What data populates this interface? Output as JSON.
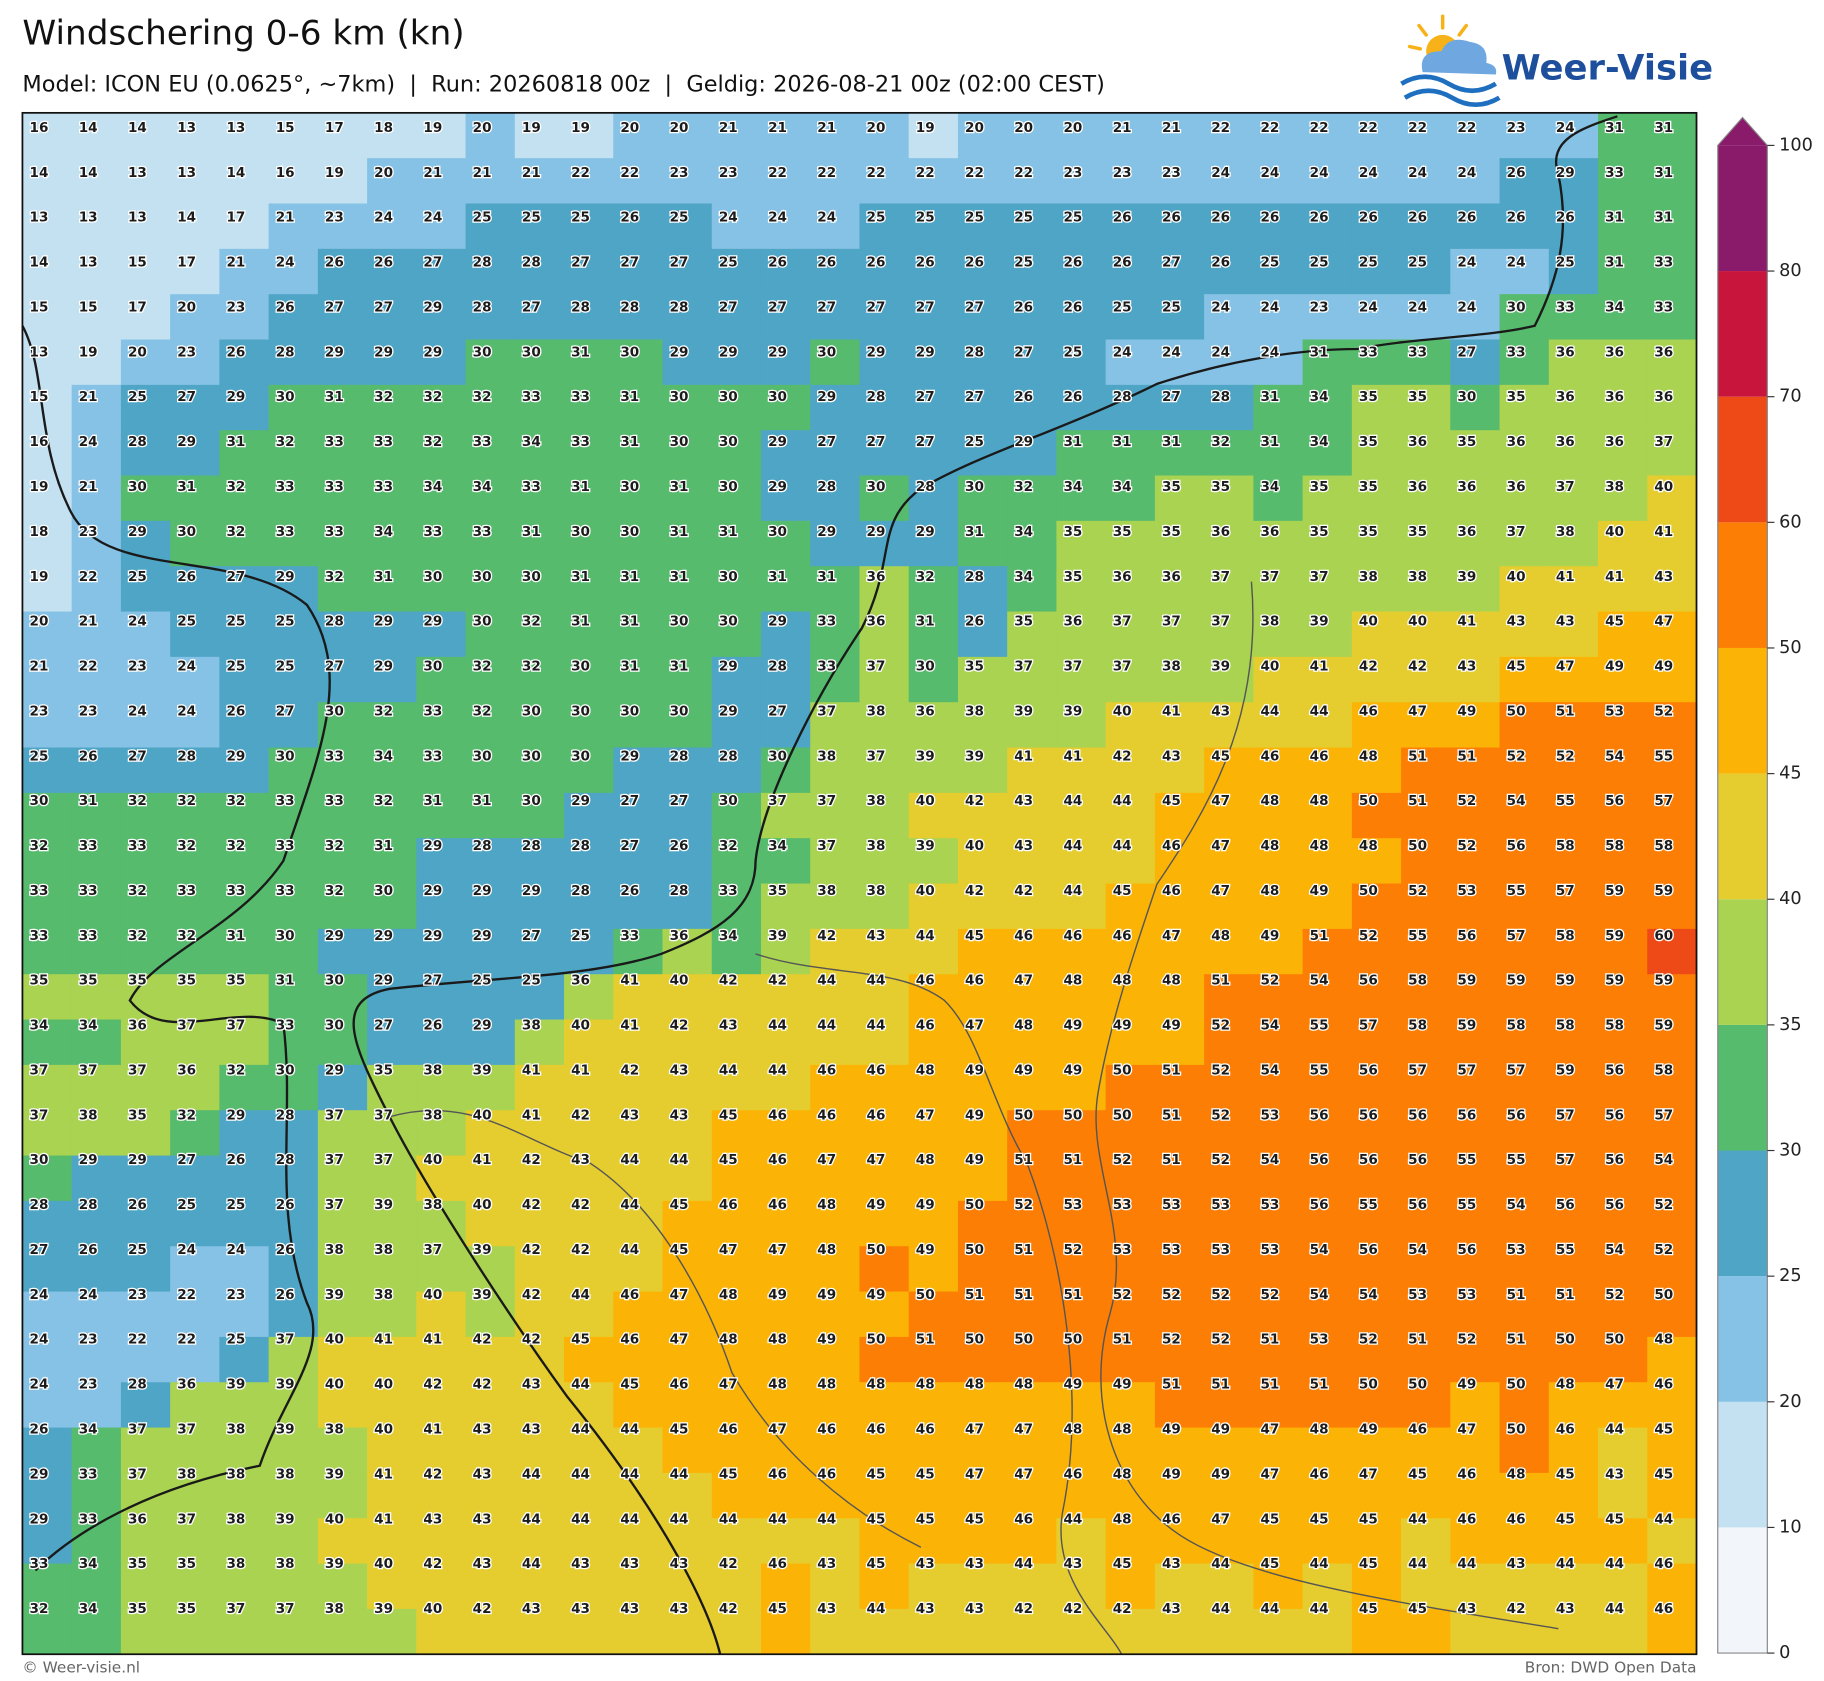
{
  "header": {
    "title": "Windschering 0-6 km (kn)",
    "subtitle": "Model: ICON EU (0.0625°, ~7km)  |  Run: 20260818 00z  |  Geldig: 2026-08-21 00z (02:00 CEST)",
    "logo": "Weer-Visie"
  },
  "map": {
    "rows": [
      [
        16,
        14,
        14,
        13,
        13,
        15,
        17,
        18,
        19,
        20,
        19,
        19,
        20,
        20,
        21,
        21,
        21,
        20,
        19,
        20,
        20,
        20,
        21,
        21,
        22,
        22,
        22,
        22,
        22,
        22,
        23,
        24,
        31,
        31
      ],
      [
        14,
        14,
        13,
        13,
        14,
        16,
        19,
        20,
        21,
        21,
        21,
        22,
        22,
        23,
        23,
        22,
        22,
        22,
        22,
        22,
        22,
        23,
        23,
        23,
        24,
        24,
        24,
        24,
        24,
        24,
        26,
        29,
        33,
        31
      ],
      [
        13,
        13,
        13,
        14,
        17,
        21,
        23,
        24,
        24,
        25,
        25,
        25,
        26,
        25,
        24,
        24,
        24,
        25,
        25,
        25,
        25,
        25,
        26,
        26,
        26,
        26,
        26,
        26,
        26,
        26,
        26,
        26,
        31,
        31
      ],
      [
        14,
        13,
        15,
        17,
        21,
        24,
        26,
        26,
        27,
        28,
        28,
        27,
        27,
        27,
        25,
        26,
        26,
        26,
        26,
        26,
        25,
        26,
        26,
        27,
        26,
        25,
        25,
        25,
        25,
        24,
        24,
        25,
        31,
        33
      ],
      [
        15,
        15,
        17,
        20,
        23,
        26,
        27,
        27,
        29,
        28,
        27,
        28,
        28,
        28,
        27,
        27,
        27,
        27,
        27,
        27,
        26,
        26,
        25,
        25,
        24,
        24,
        23,
        24,
        24,
        24,
        30,
        33,
        34,
        33
      ],
      [
        13,
        19,
        20,
        23,
        26,
        28,
        29,
        29,
        29,
        30,
        30,
        31,
        30,
        29,
        29,
        29,
        30,
        29,
        29,
        28,
        27,
        25,
        24,
        24,
        24,
        24,
        31,
        33,
        33,
        27,
        33,
        36,
        36,
        36
      ],
      [
        15,
        21,
        25,
        27,
        29,
        30,
        31,
        32,
        32,
        32,
        33,
        33,
        31,
        30,
        30,
        30,
        29,
        28,
        27,
        27,
        26,
        26,
        28,
        27,
        28,
        31,
        34,
        35,
        35,
        30,
        35,
        36,
        36,
        36
      ],
      [
        16,
        24,
        28,
        29,
        31,
        32,
        33,
        33,
        32,
        33,
        34,
        33,
        31,
        30,
        30,
        29,
        27,
        27,
        27,
        25,
        29,
        31,
        31,
        31,
        32,
        31,
        34,
        35,
        36,
        35,
        36,
        36,
        36,
        37
      ],
      [
        19,
        21,
        30,
        31,
        32,
        33,
        33,
        33,
        34,
        34,
        33,
        31,
        30,
        31,
        30,
        29,
        28,
        30,
        28,
        30,
        32,
        34,
        34,
        35,
        35,
        34,
        35,
        35,
        36,
        36,
        36,
        37,
        38,
        40
      ],
      [
        18,
        23,
        29,
        30,
        32,
        33,
        33,
        34,
        33,
        33,
        31,
        30,
        30,
        31,
        31,
        30,
        29,
        29,
        29,
        31,
        34,
        35,
        35,
        35,
        36,
        36,
        35,
        35,
        35,
        36,
        37,
        38,
        40,
        41
      ],
      [
        19,
        22,
        25,
        26,
        27,
        29,
        32,
        31,
        30,
        30,
        30,
        31,
        31,
        31,
        30,
        31,
        31,
        36,
        32,
        28,
        34,
        35,
        36,
        36,
        37,
        37,
        37,
        38,
        38,
        39,
        40,
        41,
        41,
        43
      ],
      [
        20,
        21,
        24,
        25,
        25,
        25,
        28,
        29,
        29,
        30,
        32,
        31,
        31,
        30,
        30,
        29,
        33,
        36,
        31,
        26,
        35,
        36,
        37,
        37,
        37,
        38,
        39,
        40,
        40,
        41,
        43,
        43,
        45,
        47
      ],
      [
        21,
        22,
        23,
        24,
        25,
        25,
        27,
        29,
        30,
        32,
        32,
        30,
        31,
        31,
        29,
        28,
        33,
        37,
        30,
        35,
        37,
        37,
        37,
        38,
        39,
        40,
        41,
        42,
        42,
        43,
        45,
        47,
        49,
        49
      ],
      [
        23,
        23,
        24,
        24,
        26,
        27,
        30,
        32,
        33,
        32,
        30,
        30,
        30,
        30,
        29,
        27,
        37,
        38,
        36,
        38,
        39,
        39,
        40,
        41,
        43,
        44,
        44,
        46,
        47,
        49,
        50,
        51,
        53,
        52
      ],
      [
        25,
        26,
        27,
        28,
        29,
        30,
        33,
        34,
        33,
        30,
        30,
        30,
        29,
        28,
        28,
        30,
        38,
        37,
        39,
        39,
        41,
        41,
        42,
        43,
        45,
        46,
        46,
        48,
        51,
        51,
        52,
        52,
        54,
        55
      ],
      [
        30,
        31,
        32,
        32,
        32,
        33,
        33,
        32,
        31,
        31,
        30,
        29,
        27,
        27,
        30,
        37,
        37,
        38,
        40,
        42,
        43,
        44,
        44,
        45,
        47,
        48,
        48,
        50,
        51,
        52,
        54,
        55,
        56,
        57
      ],
      [
        32,
        33,
        33,
        32,
        32,
        33,
        32,
        31,
        29,
        28,
        28,
        28,
        27,
        26,
        32,
        34,
        37,
        38,
        39,
        40,
        43,
        44,
        44,
        46,
        47,
        48,
        48,
        48,
        50,
        52,
        56,
        58,
        58,
        58
      ],
      [
        33,
        33,
        32,
        33,
        33,
        33,
        32,
        30,
        29,
        29,
        29,
        28,
        26,
        28,
        33,
        35,
        38,
        38,
        40,
        42,
        42,
        44,
        45,
        46,
        47,
        48,
        49,
        50,
        52,
        53,
        55,
        57,
        59,
        59
      ],
      [
        33,
        33,
        32,
        32,
        31,
        30,
        29,
        29,
        29,
        29,
        27,
        25,
        33,
        36,
        34,
        39,
        42,
        43,
        44,
        45,
        46,
        46,
        46,
        47,
        48,
        49,
        51,
        52,
        55,
        56,
        57,
        58,
        59,
        60
      ],
      [
        35,
        35,
        35,
        35,
        35,
        31,
        30,
        29,
        27,
        25,
        25,
        36,
        41,
        40,
        42,
        42,
        44,
        44,
        46,
        46,
        47,
        48,
        48,
        48,
        51,
        52,
        54,
        56,
        58,
        59,
        59,
        59,
        59,
        59
      ],
      [
        34,
        34,
        36,
        37,
        37,
        33,
        30,
        27,
        26,
        29,
        38,
        40,
        41,
        42,
        43,
        44,
        44,
        44,
        46,
        47,
        48,
        49,
        49,
        49,
        52,
        54,
        55,
        57,
        58,
        59,
        58,
        58,
        58,
        59
      ],
      [
        37,
        37,
        37,
        36,
        32,
        30,
        29,
        35,
        38,
        39,
        41,
        41,
        42,
        43,
        44,
        44,
        46,
        46,
        48,
        49,
        49,
        49,
        50,
        51,
        52,
        54,
        55,
        56,
        57,
        57,
        57,
        59,
        56,
        58
      ],
      [
        37,
        38,
        35,
        32,
        29,
        28,
        37,
        37,
        38,
        40,
        41,
        42,
        43,
        43,
        45,
        46,
        46,
        46,
        47,
        49,
        50,
        50,
        50,
        51,
        52,
        53,
        56,
        56,
        56,
        56,
        56,
        57,
        56,
        57
      ],
      [
        30,
        29,
        29,
        27,
        26,
        28,
        37,
        37,
        40,
        41,
        42,
        43,
        44,
        44,
        45,
        46,
        47,
        47,
        48,
        49,
        51,
        51,
        52,
        51,
        52,
        54,
        56,
        56,
        56,
        55,
        55,
        57,
        56,
        54
      ],
      [
        28,
        28,
        26,
        25,
        25,
        26,
        37,
        39,
        38,
        40,
        42,
        42,
        44,
        45,
        46,
        46,
        48,
        49,
        49,
        50,
        52,
        53,
        53,
        53,
        53,
        53,
        56,
        55,
        56,
        55,
        54,
        56,
        56,
        52
      ],
      [
        27,
        26,
        25,
        24,
        24,
        26,
        38,
        38,
        37,
        39,
        42,
        42,
        44,
        45,
        47,
        47,
        48,
        50,
        49,
        50,
        51,
        52,
        53,
        53,
        53,
        53,
        54,
        56,
        54,
        56,
        53,
        55,
        54,
        52
      ],
      [
        24,
        24,
        23,
        22,
        23,
        26,
        39,
        38,
        40,
        39,
        42,
        44,
        46,
        47,
        48,
        49,
        49,
        49,
        50,
        51,
        51,
        51,
        52,
        52,
        52,
        52,
        54,
        54,
        53,
        53,
        51,
        51,
        52,
        50
      ],
      [
        24,
        23,
        22,
        22,
        25,
        37,
        40,
        41,
        41,
        42,
        42,
        45,
        46,
        47,
        48,
        48,
        49,
        50,
        51,
        50,
        50,
        50,
        51,
        52,
        52,
        51,
        53,
        52,
        51,
        52,
        51,
        50,
        50,
        48
      ],
      [
        24,
        23,
        28,
        36,
        39,
        39,
        40,
        40,
        42,
        42,
        43,
        44,
        45,
        46,
        47,
        48,
        48,
        48,
        48,
        48,
        48,
        49,
        49,
        51,
        51,
        51,
        51,
        50,
        50,
        49,
        50,
        48,
        47,
        46
      ],
      [
        26,
        34,
        37,
        37,
        38,
        39,
        38,
        40,
        41,
        43,
        43,
        44,
        44,
        45,
        46,
        47,
        46,
        46,
        46,
        47,
        47,
        48,
        48,
        49,
        49,
        47,
        48,
        49,
        46,
        47,
        50,
        46,
        44,
        45
      ],
      [
        29,
        33,
        37,
        38,
        38,
        38,
        39,
        41,
        42,
        43,
        44,
        44,
        44,
        44,
        45,
        46,
        46,
        45,
        45,
        47,
        47,
        46,
        48,
        49,
        49,
        47,
        46,
        47,
        45,
        46,
        48,
        45,
        43,
        45
      ],
      [
        29,
        33,
        36,
        37,
        38,
        39,
        40,
        41,
        43,
        43,
        44,
        44,
        44,
        44,
        44,
        44,
        44,
        45,
        45,
        45,
        46,
        44,
        48,
        46,
        47,
        45,
        45,
        45,
        44,
        46,
        46,
        45,
        45,
        44
      ],
      [
        33,
        34,
        35,
        35,
        38,
        38,
        39,
        40,
        42,
        43,
        44,
        43,
        43,
        43,
        42,
        46,
        43,
        45,
        43,
        43,
        44,
        43,
        45,
        43,
        44,
        45,
        44,
        45,
        44,
        44,
        43,
        44,
        44,
        46
      ],
      [
        32,
        34,
        35,
        35,
        37,
        37,
        38,
        39,
        40,
        42,
        43,
        43,
        43,
        43,
        42,
        45,
        43,
        44,
        43,
        43,
        42,
        42,
        42,
        43,
        44,
        44,
        44,
        45,
        45,
        43,
        42,
        43,
        44,
        46
      ]
    ]
  },
  "colorbar": {
    "ticks": [
      0,
      10,
      20,
      25,
      30,
      35,
      40,
      45,
      50,
      60,
      70,
      80,
      100
    ],
    "colors": [
      "#f2f6fa",
      "#c3e1f1",
      "#86c2e5",
      "#4fa5c6",
      "#56bb6c",
      "#a9d351",
      "#e6cd2f",
      "#fbb406",
      "#fd7e04",
      "#ee4a17",
      "#c8153b",
      "#8a1b6b"
    ]
  },
  "footer": {
    "copyright": "© Weer-visie.nl",
    "source": "Bron: DWD Open Data"
  }
}
